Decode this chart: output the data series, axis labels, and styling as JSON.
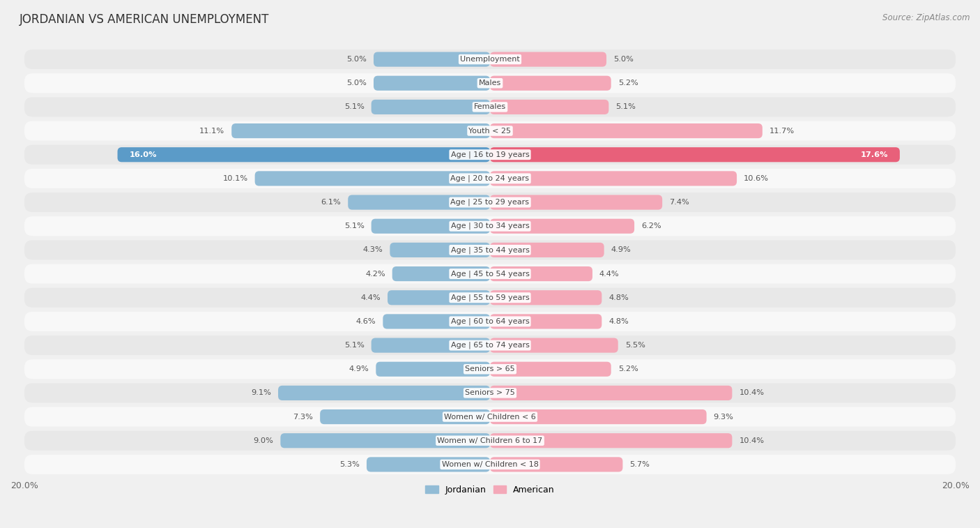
{
  "title": "JORDANIAN VS AMERICAN UNEMPLOYMENT",
  "source": "Source: ZipAtlas.com",
  "categories": [
    "Unemployment",
    "Males",
    "Females",
    "Youth < 25",
    "Age | 16 to 19 years",
    "Age | 20 to 24 years",
    "Age | 25 to 29 years",
    "Age | 30 to 34 years",
    "Age | 35 to 44 years",
    "Age | 45 to 54 years",
    "Age | 55 to 59 years",
    "Age | 60 to 64 years",
    "Age | 65 to 74 years",
    "Seniors > 65",
    "Seniors > 75",
    "Women w/ Children < 6",
    "Women w/ Children 6 to 17",
    "Women w/ Children < 18"
  ],
  "jordanian": [
    5.0,
    5.0,
    5.1,
    11.1,
    16.0,
    10.1,
    6.1,
    5.1,
    4.3,
    4.2,
    4.4,
    4.6,
    5.1,
    4.9,
    9.1,
    7.3,
    9.0,
    5.3
  ],
  "american": [
    5.0,
    5.2,
    5.1,
    11.7,
    17.6,
    10.6,
    7.4,
    6.2,
    4.9,
    4.4,
    4.8,
    4.8,
    5.5,
    5.2,
    10.4,
    9.3,
    10.4,
    5.7
  ],
  "jordanian_color": "#92bcd6",
  "american_color": "#f4a8b8",
  "highlight_jordanian_color": "#5b9bc8",
  "highlight_american_color": "#e8607a",
  "highlight_index": 4,
  "bar_height": 0.62,
  "bg_color": "#f0f0f0",
  "row_odd_color": "#e8e8e8",
  "row_even_color": "#f8f8f8",
  "x_max": 20.0,
  "label_fontsize": 8.0,
  "value_fontsize": 8.2,
  "title_fontsize": 12,
  "legend_fontsize": 9,
  "center_label_color": "#444444",
  "value_label_color": "#555555"
}
